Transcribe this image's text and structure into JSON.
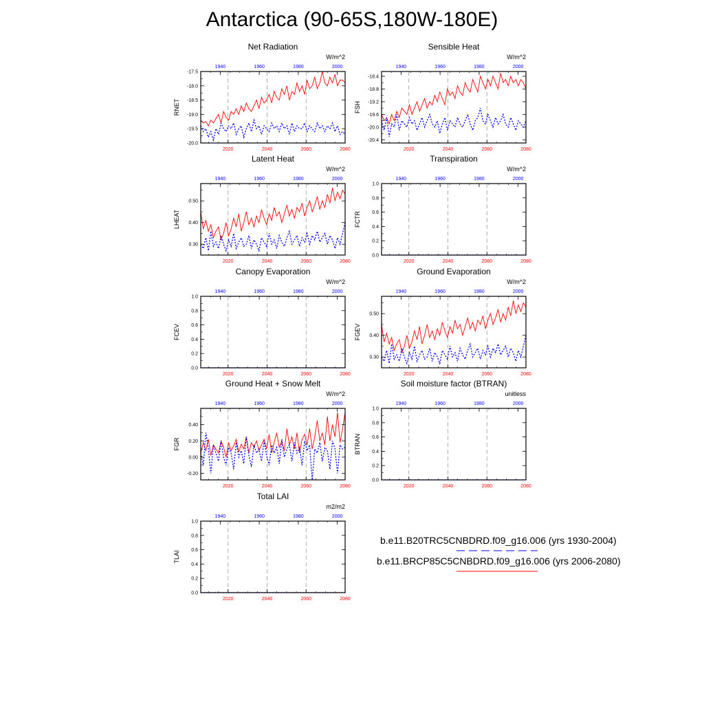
{
  "page": {
    "title": "Antarctica (90-65S,180W-180E)",
    "legend": [
      {
        "label": "b.e11.B20TRC5CNBDRD.f09_g16.006 (yrs 1930-2004)",
        "color": "#0000ff",
        "style": "dashed"
      },
      {
        "label": "b.e11.BRCP85C5CNBDRD.f09_g16.006 (yrs 2006-2080)",
        "color": "#ff0000",
        "style": "solid"
      }
    ]
  },
  "chart_data": [
    {
      "type": "line",
      "title": "Net Radiation",
      "ylabel": "RNET",
      "units": "W/m^2",
      "bottom_axis": {
        "ticks": [
          2020,
          2040,
          2060,
          2080
        ],
        "range": [
          2006,
          2080
        ],
        "color": "#ff0000"
      },
      "top_axis": {
        "ticks": [
          1940,
          1960,
          1980,
          2000
        ],
        "range": [
          1930,
          2004
        ],
        "color": "#0000ff"
      },
      "ylim": [
        -20.0,
        -17.5
      ],
      "yticks": [
        -20.0,
        -19.5,
        -19.0,
        -18.5,
        -18.0,
        -17.5
      ],
      "ytick_labels": [
        "-20.0",
        "-19.5",
        "-19.0",
        "-18.5",
        "-18.0",
        "-17.5"
      ],
      "series": [
        {
          "values": [
            -19.2,
            -19.3,
            -19.25,
            -19.4,
            -19.2,
            -19.3,
            -19.15,
            -19.0,
            -19.3,
            -18.9,
            -19.1,
            -19.2,
            -18.9,
            -19.0,
            -18.8,
            -19.0,
            -18.7,
            -18.9,
            -18.6,
            -18.8,
            -18.9,
            -18.7,
            -18.5,
            -18.8,
            -18.4,
            -18.6,
            -18.5,
            -18.3,
            -18.6,
            -18.2,
            -18.4,
            -18.5,
            -18.1,
            -18.3,
            -18.0,
            -18.5,
            -18.2,
            -18.3,
            -17.9,
            -18.2,
            -18.0,
            -18.3,
            -17.8,
            -18.1,
            -18.0,
            -17.7,
            -18.1,
            -17.9,
            -17.5,
            -17.9,
            -18.0,
            -17.7,
            -17.9,
            -17.6,
            -18.0,
            -17.8,
            -17.8,
            -17.9
          ]
        },
        {
          "values": [
            -19.4,
            -19.6,
            -19.5,
            -19.8,
            -19.6,
            -19.9,
            -19.5,
            -19.7,
            -19.3,
            -19.5,
            -19.6,
            -19.4,
            -19.5,
            -19.3,
            -19.7,
            -19.5,
            -19.4,
            -19.8,
            -19.5,
            -19.3,
            -19.6,
            -19.2,
            -19.5,
            -19.4,
            -19.7,
            -19.4,
            -19.5,
            -19.6,
            -19.3,
            -19.5,
            -19.4,
            -19.6,
            -19.3,
            -19.5,
            -19.4,
            -19.7,
            -19.3,
            -19.6,
            -19.4,
            -19.5,
            -19.5,
            -19.3,
            -19.6,
            -19.4,
            -19.5,
            -19.6,
            -19.3,
            -19.5,
            -19.4,
            -19.6,
            -19.4,
            -19.5,
            -19.3,
            -19.6,
            -19.4,
            -19.7,
            -19.6,
            -19.7
          ]
        }
      ]
    },
    {
      "type": "line",
      "title": "Sensible Heat",
      "ylabel": "FSH",
      "units": "W/m^2",
      "bottom_axis": {
        "ticks": [
          2020,
          2040,
          2060,
          2080
        ],
        "range": [
          2006,
          2080
        ],
        "color": "#ff0000"
      },
      "top_axis": {
        "ticks": [
          1940,
          1960,
          1980,
          2000
        ],
        "range": [
          1930,
          2004
        ],
        "color": "#0000ff"
      },
      "ylim": [
        -20.5,
        -18.25
      ],
      "yticks": [
        -20.4,
        -20.0,
        -19.6,
        -19.2,
        -18.8,
        -18.4
      ],
      "ytick_labels": [
        "-20.4",
        "-20.0",
        "-19.6",
        "-19.2",
        "-18.8",
        "-18.4"
      ],
      "series": [
        {
          "values": [
            -19.6,
            -19.8,
            -19.7,
            -19.9,
            -19.6,
            -19.8,
            -19.5,
            -19.7,
            -19.4,
            -19.5,
            -19.6,
            -19.3,
            -19.6,
            -19.4,
            -19.2,
            -19.5,
            -19.3,
            -19.1,
            -19.4,
            -19.2,
            -19.3,
            -19.0,
            -19.2,
            -18.9,
            -19.1,
            -19.3,
            -18.8,
            -19.0,
            -18.9,
            -19.1,
            -18.7,
            -18.9,
            -19.0,
            -18.6,
            -18.8,
            -18.9,
            -18.5,
            -18.7,
            -18.9,
            -18.4,
            -18.6,
            -18.8,
            -18.5,
            -18.7,
            -18.4,
            -18.6,
            -18.8,
            -18.3,
            -18.6,
            -18.5,
            -18.7,
            -18.4,
            -18.6,
            -18.5,
            -18.7,
            -18.5,
            -18.6,
            -18.8
          ]
        },
        {
          "values": [
            -19.8,
            -20.1,
            -19.7,
            -20.3,
            -19.9,
            -20.0,
            -19.6,
            -20.1,
            -19.8,
            -19.9,
            -20.0,
            -19.7,
            -19.9,
            -19.8,
            -20.1,
            -19.9,
            -19.7,
            -20.0,
            -19.8,
            -19.6,
            -19.9,
            -20.0,
            -19.8,
            -20.2,
            -19.9,
            -19.7,
            -20.1,
            -19.8,
            -19.9,
            -20.0,
            -19.7,
            -19.9,
            -20.0,
            -19.8,
            -19.6,
            -19.9,
            -20.1,
            -19.8,
            -19.7,
            -19.4,
            -19.8,
            -19.9,
            -19.6,
            -19.8,
            -20.0,
            -19.7,
            -19.9,
            -19.8,
            -19.6,
            -19.9,
            -20.0,
            -19.7,
            -19.9,
            -20.1,
            -19.8,
            -19.9,
            -20.0,
            -19.8
          ]
        }
      ]
    },
    {
      "type": "line",
      "title": "Latent Heat",
      "ylabel": "LHEAT",
      "units": "W/m^2",
      "bottom_axis": {
        "ticks": [
          2020,
          2040,
          2060,
          2080
        ],
        "range": [
          2006,
          2080
        ],
        "color": "#ff0000"
      },
      "top_axis": {
        "ticks": [
          1940,
          1960,
          1980,
          2000
        ],
        "range": [
          1930,
          2004
        ],
        "color": "#0000ff"
      },
      "ylim": [
        0.25,
        0.58
      ],
      "yticks": [
        0.3,
        0.4,
        0.5
      ],
      "ytick_labels": [
        "0.30",
        "0.40",
        "0.50"
      ],
      "series": [
        {
          "values": [
            0.45,
            0.37,
            0.41,
            0.36,
            0.39,
            0.33,
            0.36,
            0.38,
            0.32,
            0.35,
            0.4,
            0.34,
            0.37,
            0.42,
            0.38,
            0.44,
            0.36,
            0.4,
            0.45,
            0.39,
            0.42,
            0.38,
            0.43,
            0.4,
            0.46,
            0.42,
            0.39,
            0.44,
            0.41,
            0.47,
            0.43,
            0.45,
            0.4,
            0.44,
            0.48,
            0.43,
            0.46,
            0.42,
            0.47,
            0.45,
            0.49,
            0.43,
            0.47,
            0.5,
            0.45,
            0.48,
            0.52,
            0.46,
            0.5,
            0.47,
            0.53,
            0.49,
            0.56,
            0.5,
            0.54,
            0.51,
            0.55,
            0.53
          ]
        },
        {
          "values": [
            0.3,
            0.28,
            0.33,
            0.27,
            0.36,
            0.29,
            0.31,
            0.28,
            0.34,
            0.3,
            0.27,
            0.32,
            0.29,
            0.35,
            0.28,
            0.31,
            0.33,
            0.29,
            0.3,
            0.34,
            0.28,
            0.32,
            0.3,
            0.27,
            0.33,
            0.31,
            0.29,
            0.35,
            0.3,
            0.32,
            0.28,
            0.34,
            0.31,
            0.29,
            0.33,
            0.36,
            0.3,
            0.32,
            0.34,
            0.29,
            0.33,
            0.31,
            0.35,
            0.3,
            0.34,
            0.32,
            0.36,
            0.31,
            0.33,
            0.35,
            0.3,
            0.34,
            0.32,
            0.28,
            0.33,
            0.3,
            0.35,
            0.4
          ]
        }
      ]
    },
    {
      "type": "line",
      "title": "Transpiration",
      "ylabel": "FCTR",
      "units": "W/m^2",
      "bottom_axis": {
        "ticks": [
          2020,
          2040,
          2060,
          2080
        ],
        "range": [
          2006,
          2080
        ],
        "color": "#ff0000"
      },
      "top_axis": {
        "ticks": [
          1940,
          1960,
          1980,
          2000
        ],
        "range": [
          1930,
          2004
        ],
        "color": "#0000ff"
      },
      "ylim": [
        0.0,
        1.0
      ],
      "yticks": [
        0.0,
        0.2,
        0.4,
        0.6,
        0.8,
        1.0
      ],
      "ytick_labels": [
        "0.0",
        "0.2",
        "0.4",
        "0.6",
        "0.8",
        "1.0"
      ],
      "series": [
        {
          "values": [
            0.0,
            0.0
          ]
        },
        {
          "values": [
            0.0,
            0.0
          ]
        }
      ]
    },
    {
      "type": "line",
      "title": "Canopy Evaporation",
      "ylabel": "FCEV",
      "units": "W/m^2",
      "bottom_axis": {
        "ticks": [
          2020,
          2040,
          2060,
          2080
        ],
        "range": [
          2006,
          2080
        ],
        "color": "#ff0000"
      },
      "top_axis": {
        "ticks": [
          1940,
          1960,
          1980,
          2000
        ],
        "range": [
          1930,
          2004
        ],
        "color": "#0000ff"
      },
      "ylim": [
        0.0,
        1.0
      ],
      "yticks": [
        0.0,
        0.2,
        0.4,
        0.6,
        0.8,
        1.0
      ],
      "ytick_labels": [
        "0.0",
        "0.2",
        "0.4",
        "0.6",
        "0.8",
        "1.0"
      ],
      "series": [
        {
          "values": [
            0.0,
            0.0
          ]
        },
        {
          "values": [
            0.0,
            0.0
          ]
        }
      ]
    },
    {
      "type": "line",
      "title": "Ground Evaporation",
      "ylabel": "FGEV",
      "units": "W/m^2",
      "bottom_axis": {
        "ticks": [
          2020,
          2040,
          2060,
          2080
        ],
        "range": [
          2006,
          2080
        ],
        "color": "#ff0000"
      },
      "top_axis": {
        "ticks": [
          1940,
          1960,
          1980,
          2000
        ],
        "range": [
          1930,
          2004
        ],
        "color": "#0000ff"
      },
      "ylim": [
        0.25,
        0.58
      ],
      "yticks": [
        0.3,
        0.4,
        0.5
      ],
      "ytick_labels": [
        "0.30",
        "0.40",
        "0.50"
      ],
      "series": [
        {
          "values": [
            0.45,
            0.37,
            0.41,
            0.36,
            0.39,
            0.33,
            0.36,
            0.38,
            0.32,
            0.35,
            0.4,
            0.34,
            0.37,
            0.42,
            0.38,
            0.44,
            0.36,
            0.4,
            0.45,
            0.39,
            0.42,
            0.38,
            0.43,
            0.4,
            0.46,
            0.42,
            0.39,
            0.44,
            0.41,
            0.47,
            0.43,
            0.45,
            0.4,
            0.44,
            0.48,
            0.43,
            0.46,
            0.42,
            0.47,
            0.45,
            0.49,
            0.43,
            0.47,
            0.5,
            0.45,
            0.48,
            0.52,
            0.46,
            0.5,
            0.47,
            0.53,
            0.49,
            0.56,
            0.5,
            0.54,
            0.51,
            0.55,
            0.53
          ]
        },
        {
          "values": [
            0.3,
            0.28,
            0.33,
            0.27,
            0.36,
            0.29,
            0.31,
            0.28,
            0.34,
            0.3,
            0.27,
            0.32,
            0.29,
            0.35,
            0.28,
            0.31,
            0.33,
            0.29,
            0.3,
            0.34,
            0.28,
            0.32,
            0.3,
            0.27,
            0.33,
            0.31,
            0.29,
            0.35,
            0.3,
            0.32,
            0.28,
            0.34,
            0.31,
            0.29,
            0.33,
            0.36,
            0.3,
            0.32,
            0.34,
            0.29,
            0.33,
            0.31,
            0.35,
            0.3,
            0.34,
            0.32,
            0.36,
            0.31,
            0.33,
            0.35,
            0.3,
            0.34,
            0.32,
            0.28,
            0.33,
            0.3,
            0.35,
            0.4
          ]
        }
      ]
    },
    {
      "type": "line",
      "title": "Ground Heat + Snow Melt",
      "ylabel": "FGR",
      "units": "W/m^2",
      "bottom_axis": {
        "ticks": [
          2020,
          2040,
          2060,
          2080
        ],
        "range": [
          2006,
          2080
        ],
        "color": "#ff0000"
      },
      "top_axis": {
        "ticks": [
          1940,
          1960,
          1980,
          2000
        ],
        "range": [
          1930,
          2004
        ],
        "color": "#0000ff"
      },
      "ylim": [
        -0.28,
        0.6
      ],
      "yticks": [
        -0.2,
        0.0,
        0.2,
        0.4
      ],
      "ytick_labels": [
        "-0.20",
        "0.00",
        "0.20",
        "0.40"
      ],
      "series": [
        {
          "values": [
            0.05,
            0.18,
            0.08,
            0.22,
            0.02,
            0.15,
            0.1,
            0.05,
            0.2,
            0.12,
            0.0,
            0.18,
            0.08,
            0.14,
            0.22,
            0.06,
            0.16,
            0.1,
            0.25,
            0.05,
            0.18,
            0.12,
            0.2,
            0.08,
            0.15,
            0.22,
            0.1,
            0.28,
            0.05,
            0.18,
            0.3,
            0.12,
            0.2,
            0.08,
            0.35,
            0.15,
            0.25,
            0.1,
            0.3,
            0.05,
            0.22,
            0.28,
            0.15,
            0.35,
            0.1,
            0.25,
            0.45,
            0.2,
            0.3,
            0.15,
            0.5,
            0.2,
            0.4,
            0.25,
            0.55,
            0.18,
            0.35,
            0.55
          ]
        },
        {
          "values": [
            0.05,
            -0.1,
            0.3,
            0.1,
            -0.2,
            0.15,
            0.05,
            -0.05,
            0.2,
            0.0,
            -0.1,
            0.12,
            0.05,
            -0.15,
            0.18,
            0.0,
            0.08,
            -0.08,
            0.25,
            0.02,
            -0.12,
            0.15,
            0.05,
            0.1,
            -0.05,
            0.2,
            0.02,
            -0.1,
            0.15,
            0.05,
            0.12,
            -0.08,
            0.22,
            0.0,
            0.1,
            0.15,
            -0.05,
            0.18,
            0.05,
            0.12,
            -0.1,
            0.2,
            0.08,
            0.15,
            -0.28,
            0.1,
            0.05,
            0.18,
            -0.05,
            0.12,
            0.08,
            -0.15,
            0.2,
            0.1,
            -0.2,
            0.15,
            0.1,
            0.12
          ]
        }
      ]
    },
    {
      "type": "line",
      "title": "Soil moisture factor (BTRAN)",
      "ylabel": "BTRAN",
      "units": "unitless",
      "bottom_axis": {
        "ticks": [
          2020,
          2040,
          2060,
          2080
        ],
        "range": [
          2006,
          2080
        ],
        "color": "#ff0000"
      },
      "top_axis": {
        "ticks": [
          1940,
          1960,
          1980,
          2000
        ],
        "range": [
          1930,
          2004
        ],
        "color": "#0000ff"
      },
      "ylim": [
        0.0,
        1.0
      ],
      "yticks": [
        0.0,
        0.2,
        0.4,
        0.6,
        0.8,
        1.0
      ],
      "ytick_labels": [
        "0.0",
        "0.2",
        "0.4",
        "0.6",
        "0.8",
        "1.0"
      ],
      "series": [
        {
          "values": [
            0.0,
            0.0
          ]
        },
        {
          "values": [
            0.0,
            0.0
          ]
        }
      ]
    },
    {
      "type": "line",
      "title": "Total LAI",
      "ylabel": "TLAI",
      "units": "m2/m2",
      "bottom_axis": {
        "ticks": [
          2020,
          2040,
          2060,
          2080
        ],
        "range": [
          2006,
          2080
        ],
        "color": "#ff0000"
      },
      "top_axis": {
        "ticks": [
          1940,
          1960,
          1980,
          2000
        ],
        "range": [
          1930,
          2004
        ],
        "color": "#0000ff"
      },
      "ylim": [
        0.0,
        1.0
      ],
      "yticks": [
        0.0,
        0.2,
        0.4,
        0.6,
        0.8,
        1.0
      ],
      "ytick_labels": [
        "0.0",
        "0.2",
        "0.4",
        "0.6",
        "0.8",
        "1.0"
      ],
      "series": [
        {
          "values": [
            0.0,
            0.0
          ]
        },
        {
          "values": [
            0.0,
            0.0
          ]
        }
      ]
    }
  ]
}
